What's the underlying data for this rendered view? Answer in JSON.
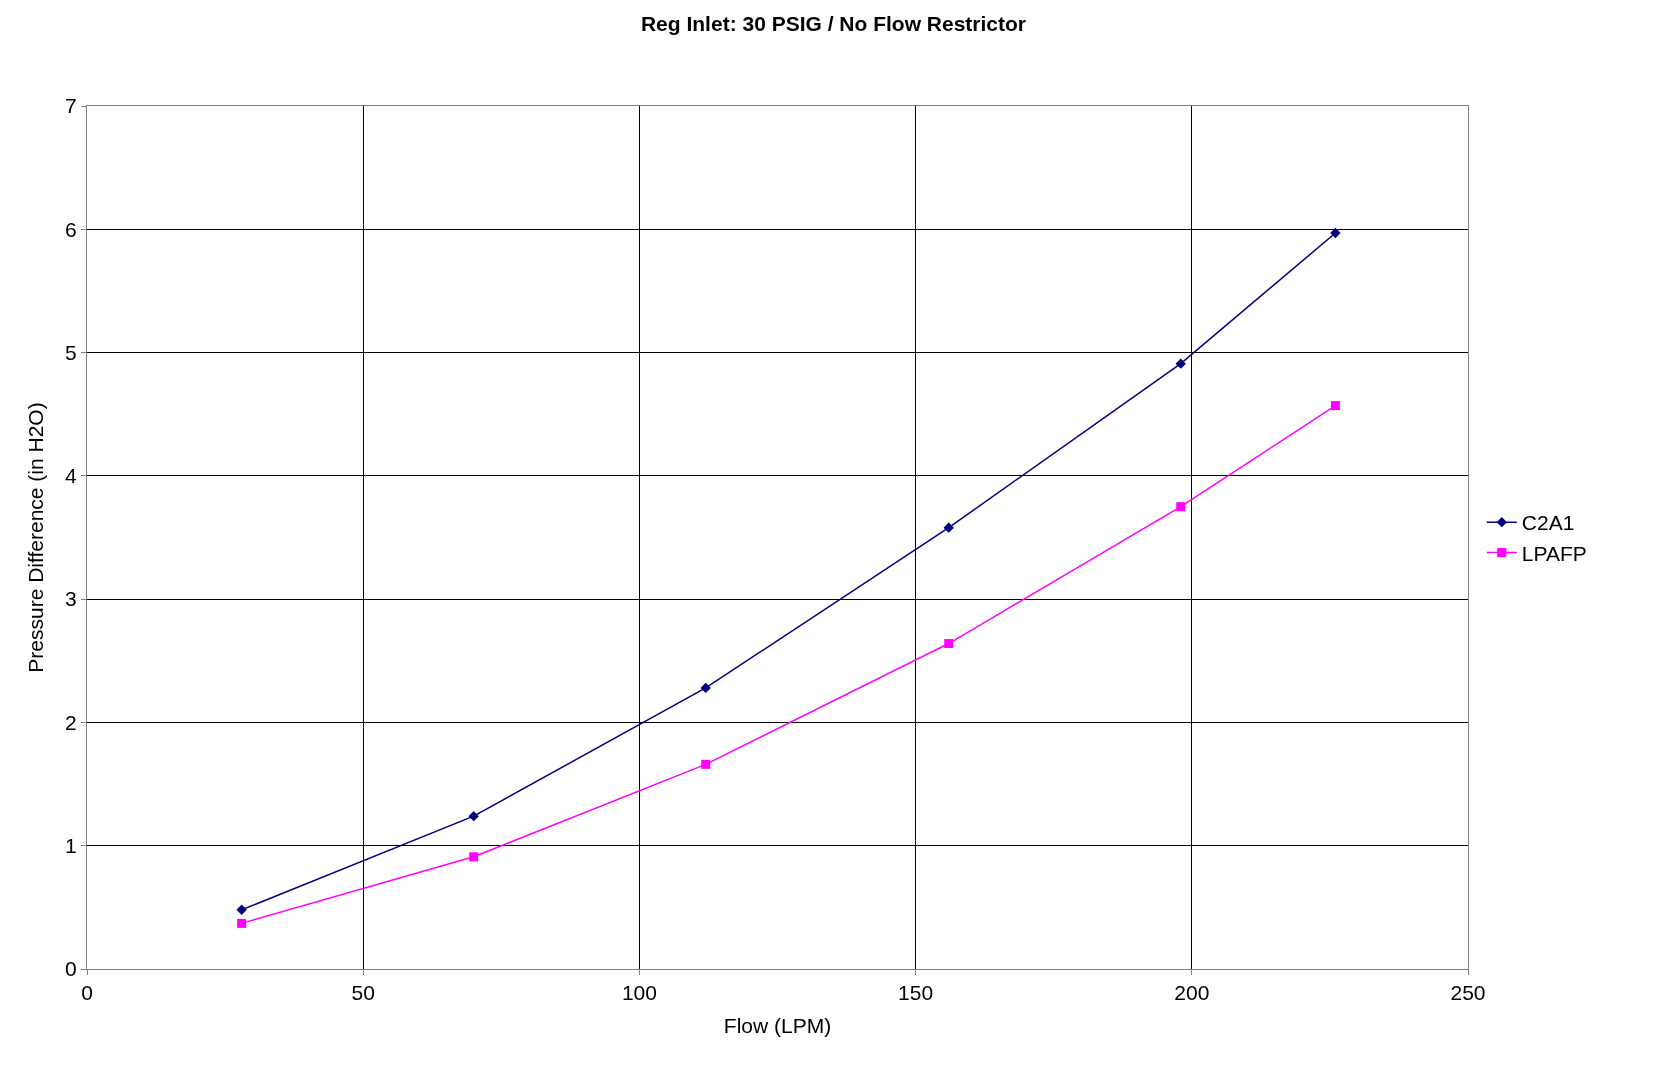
{
  "chart_data": {
    "type": "line",
    "title": "Reg Inlet: 30 PSIG / No Flow Restrictor",
    "xlabel": "Flow (LPM)",
    "ylabel": "Pressure Difference (in H2O)",
    "x": [
      28,
      70,
      112,
      156,
      198,
      226
    ],
    "series": [
      {
        "name": "C2A1",
        "color": "#000080",
        "marker": "diamond",
        "values": [
          0.48,
          1.24,
          2.28,
          3.58,
          4.91,
          5.97
        ]
      },
      {
        "name": "LPAFP",
        "color": "#ff00ff",
        "marker": "square",
        "values": [
          0.37,
          0.91,
          1.66,
          2.64,
          3.75,
          4.57
        ]
      }
    ],
    "xlim": [
      0,
      250
    ],
    "xticks": [
      0,
      50,
      100,
      150,
      200,
      250
    ],
    "ylim": [
      0,
      7
    ],
    "yticks": [
      0,
      1,
      2,
      3,
      4,
      5,
      6,
      7
    ],
    "grid": true,
    "legend": "right",
    "line_style": "solid"
  }
}
